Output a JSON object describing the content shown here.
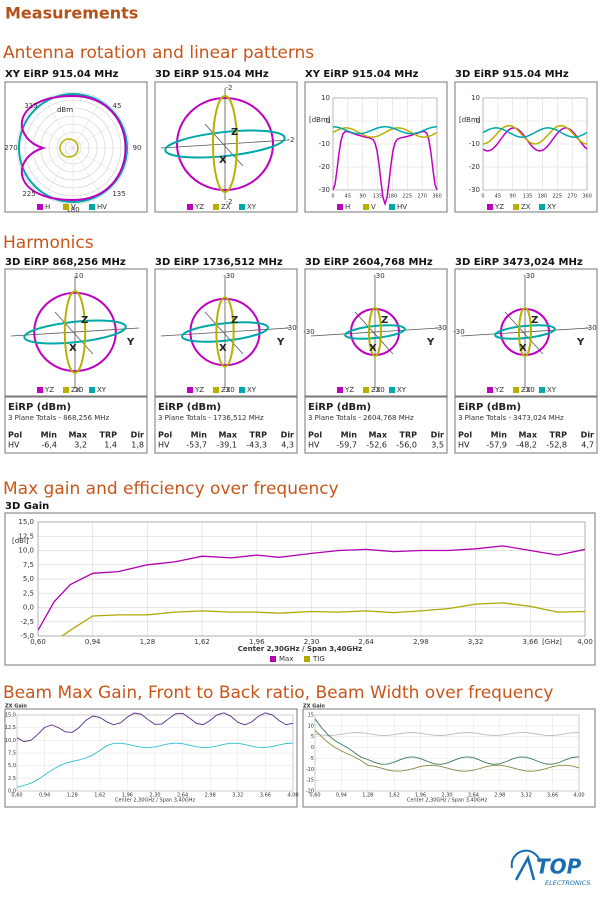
{
  "title": "Measurements",
  "patterns": {
    "heading": "Antenna rotation and linear patterns",
    "panels": [
      {
        "title": "XY EiRP 915.04 MHz",
        "kind": "polar",
        "labels": [
          "315",
          "45",
          "270",
          "90",
          "225",
          "135",
          "180",
          "dBm"
        ],
        "legend": [
          "H",
          "V",
          "HV"
        ]
      },
      {
        "title": "3D EiRP 915.04 MHz",
        "kind": "sphere",
        "labels": [
          "-2",
          "-2",
          "-2"
        ],
        "axes": [
          "Z",
          "X"
        ],
        "legend": [
          "YZ",
          "ZX",
          "XY"
        ]
      },
      {
        "title": "XY EiRP 915.04 MHz",
        "kind": "cart",
        "unit": "[dBm]",
        "yticks": [
          "10",
          "0",
          "-10",
          "-20",
          "-30"
        ],
        "xticks": [
          "0",
          "45",
          "90",
          "135",
          "180",
          "225",
          "270",
          "360"
        ],
        "legend": [
          "H",
          "V",
          "HV"
        ]
      },
      {
        "title": "3D EiRP 915.04 MHz",
        "kind": "cart",
        "unit": "[dBm]",
        "yticks": [
          "10",
          "0",
          "-10",
          "-20",
          "-30"
        ],
        "xticks": [
          "0",
          "45",
          "90",
          "135",
          "180",
          "225",
          "270",
          "360"
        ],
        "legend": [
          "YZ",
          "ZX",
          "XY"
        ]
      }
    ]
  },
  "harmonics": {
    "heading": "Harmonics",
    "panels": [
      {
        "title": "3D EiRP 868,256 MHz",
        "labels": [
          "10",
          "10"
        ],
        "axes": [
          "Z",
          "Y",
          "X"
        ],
        "legend": [
          "YZ",
          "ZX",
          "XY"
        ],
        "table": {
          "heading": "EiRP (dBm)",
          "subtitle": "3 Plane Totals - 868,256 MHz",
          "columns": [
            "Pol",
            "Min",
            "Max",
            "TRP",
            "Dir"
          ],
          "row": [
            "HV",
            "-6,4",
            "3,2",
            "1,4",
            "1,8"
          ]
        }
      },
      {
        "title": "3D EiRP 1736,512 MHz",
        "labels": [
          "-30",
          "-30",
          "-30"
        ],
        "axes": [
          "Z",
          "Y",
          "X"
        ],
        "legend": [
          "YZ",
          "ZX",
          "XY"
        ],
        "table": {
          "heading": "EiRP (dBm)",
          "subtitle": "3 Plane Totals - 1736,512 MHz",
          "columns": [
            "Pol",
            "Min",
            "Max",
            "TRP",
            "Dir"
          ],
          "row": [
            "HV",
            "-53,7",
            "-39,1",
            "-43,3",
            "4,3"
          ]
        }
      },
      {
        "title": "3D EiRP 2604,768 MHz",
        "labels": [
          "-30",
          "-30",
          "-30",
          "-30"
        ],
        "axes": [
          "Z",
          "Y",
          "X"
        ],
        "legend": [
          "YZ",
          "ZX",
          "XY"
        ],
        "table": {
          "heading": "EiRP (dBm)",
          "subtitle": "3 Plane Totals - 2604,768 MHz",
          "columns": [
            "Pol",
            "Min",
            "Max",
            "TRP",
            "Dir"
          ],
          "row": [
            "HV",
            "-59,7",
            "-52,6",
            "-56,0",
            "3,5"
          ]
        }
      },
      {
        "title": "3D EiRP 3473,024 MHz",
        "labels": [
          "-30",
          "-30",
          "-30",
          "-30"
        ],
        "axes": [
          "Z",
          "Y",
          "X"
        ],
        "legend": [
          "YZ",
          "ZX",
          "XY"
        ],
        "table": {
          "heading": "EiRP (dBm)",
          "subtitle": "3 Plane Totals - 3473,024 MHz",
          "columns": [
            "Pol",
            "Min",
            "Max",
            "TRP",
            "Dir"
          ],
          "row": [
            "HV",
            "-57,9",
            "-48,2",
            "-52,8",
            "4,7"
          ]
        }
      }
    ]
  },
  "gain": {
    "heading": "Max gain and efficiency over frequency",
    "chart_data": {
      "type": "line",
      "title": "3D Gain",
      "y_label": "[dBi]",
      "x_label": "[GHz]",
      "footer": "Center 2,30GHz / Span 3,40GHz",
      "x": [
        0.6,
        0.7,
        0.8,
        0.94,
        1.1,
        1.28,
        1.45,
        1.62,
        1.8,
        1.96,
        2.1,
        2.3,
        2.47,
        2.64,
        2.81,
        2.98,
        3.15,
        3.32,
        3.49,
        3.66,
        3.83,
        4.0
      ],
      "series": [
        {
          "name": "Max",
          "color": "#b000b0",
          "values": [
            -4,
            1,
            4,
            6,
            6.3,
            7.5,
            8,
            9,
            8.7,
            9.2,
            8.8,
            9.5,
            10,
            10.2,
            9.8,
            10,
            10,
            10.3,
            10.8,
            10,
            9.2,
            10.2
          ]
        },
        {
          "name": "TIG",
          "color": "#b0a800",
          "values": [
            null,
            -6,
            -4,
            -1.5,
            -1.3,
            -1.3,
            -0.8,
            -0.6,
            -0.8,
            -0.8,
            -1,
            -0.7,
            -0.8,
            -0.6,
            -0.9,
            -0.6,
            -0.2,
            0.6,
            0.8,
            0.2,
            -0.8,
            -0.7
          ]
        }
      ],
      "xlim": [
        0.6,
        4.0
      ],
      "xticks": [
        {
          "value": 0.6,
          "label": "0,60"
        },
        {
          "value": 0.94,
          "label": "0,94"
        },
        {
          "value": 1.28,
          "label": "1,28"
        },
        {
          "value": 1.62,
          "label": "1,62"
        },
        {
          "value": 1.96,
          "label": "1,96"
        },
        {
          "value": 2.3,
          "label": "2,30"
        },
        {
          "value": 2.64,
          "label": "2,64"
        },
        {
          "value": 2.98,
          "label": "2,98"
        },
        {
          "value": 3.32,
          "label": "3,32"
        },
        {
          "value": 3.66,
          "label": "3,66"
        },
        {
          "value": 4.0,
          "label": "4,00"
        }
      ],
      "ylim": [
        -5,
        15
      ],
      "yticks": [
        {
          "value": 15,
          "label": "15,0"
        },
        {
          "value": 12.5,
          "label": "12,5"
        },
        {
          "value": 10,
          "label": "10,0"
        },
        {
          "value": 7.5,
          "label": "7,5"
        },
        {
          "value": 5,
          "label": "5,0"
        },
        {
          "value": 2.5,
          "label": "2,5"
        },
        {
          "value": 0,
          "label": "0,0"
        },
        {
          "value": -2.5,
          "label": "-2,5"
        },
        {
          "value": -5,
          "label": "-5,0"
        }
      ],
      "grid": true
    }
  },
  "beam": {
    "heading": "Beam Max Gain, Front to Back ratio, Beam Width over frequency",
    "charts": [
      {
        "title": "ZX Gain",
        "yticks": [
          "15,0",
          "12,5",
          "10,0",
          "7,5",
          "5,0",
          "2,5",
          "0,0"
        ],
        "xticks": [
          "0,60",
          "0,94",
          "1,28",
          "1,62",
          "1,96",
          "2,30",
          "2,64",
          "2,98",
          "3,32",
          "3,66",
          "4,00"
        ],
        "footer": "Center 2,30GHz / Span 3,40GHz"
      },
      {
        "title": "ZX Gain",
        "yticks": [
          "15",
          "10",
          "5",
          "0",
          "-5",
          "-10",
          "-15",
          "-20"
        ],
        "xticks": [
          "0,60",
          "0,94",
          "1,28",
          "1,62",
          "1,96",
          "2,30",
          "2,64",
          "2,98",
          "3,32",
          "3,66",
          "4,00"
        ],
        "footer": "Center 2,30GHz / Span 3,40GHz"
      }
    ]
  },
  "logo": {
    "name": "TOP",
    "tagline": "ELECTRONICS"
  }
}
